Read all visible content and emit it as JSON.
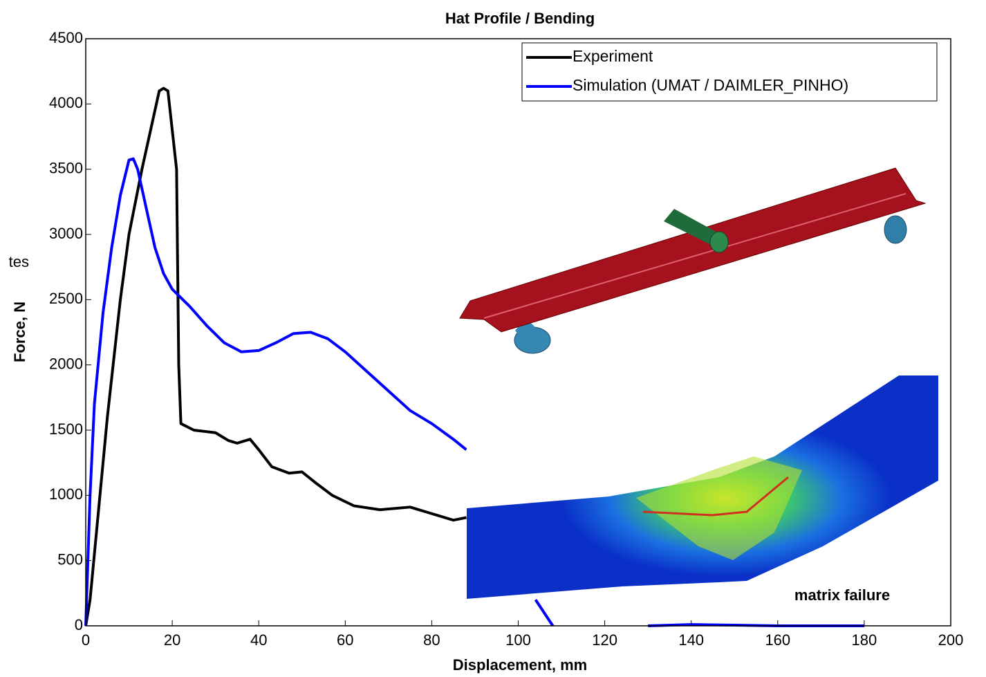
{
  "chart_data": {
    "type": "line",
    "title": "Hat Profile / Bending",
    "x_label": "Displacement, mm",
    "y_label": "Force, N",
    "annotation_left": "tes",
    "inset_label": "matrix failure",
    "xlim": [
      0,
      200
    ],
    "ylim": [
      0,
      4500
    ],
    "xticks": [
      0,
      20,
      40,
      60,
      80,
      100,
      120,
      140,
      160,
      180,
      200
    ],
    "yticks": [
      0,
      500,
      1000,
      1500,
      2000,
      2500,
      3000,
      3500,
      4000,
      4500
    ],
    "legend": "upper right",
    "series": [
      {
        "name": "Experiment",
        "color": "#000000",
        "x": [
          0,
          1,
          3,
          5,
          8,
          10,
          13,
          15,
          17,
          18,
          19,
          20,
          21,
          21.5,
          22,
          25,
          30,
          33,
          35,
          38,
          40,
          43,
          47,
          50,
          53,
          57,
          62,
          68,
          75,
          80,
          85,
          88
        ],
        "values": [
          0,
          200,
          900,
          1600,
          2500,
          3000,
          3500,
          3800,
          4100,
          4120,
          4100,
          3800,
          3500,
          2000,
          1550,
          1500,
          1480,
          1420,
          1400,
          1430,
          1350,
          1220,
          1170,
          1180,
          1100,
          1000,
          920,
          890,
          910,
          860,
          810,
          830
        ]
      },
      {
        "name": "Simulation (UMAT / DAIMLER_PINHO)",
        "color": "#0000ff",
        "x": [
          0,
          1,
          2,
          4,
          6,
          8,
          10,
          11,
          12,
          14,
          16,
          18,
          20,
          24,
          28,
          32,
          36,
          40,
          44,
          48,
          52,
          56,
          60,
          65,
          70,
          75,
          80,
          85,
          88,
          96,
          104,
          106,
          108,
          120,
          130,
          140,
          150,
          160,
          180
        ],
        "values": [
          0,
          1000,
          1700,
          2400,
          2900,
          3300,
          3570,
          3580,
          3500,
          3200,
          2900,
          2700,
          2580,
          2450,
          2300,
          2170,
          2100,
          2110,
          2170,
          2240,
          2250,
          2200,
          2100,
          1950,
          1800,
          1650,
          1550,
          1430,
          1350,
          null,
          200,
          100,
          0,
          null,
          0,
          10,
          5,
          0,
          0
        ]
      }
    ]
  }
}
